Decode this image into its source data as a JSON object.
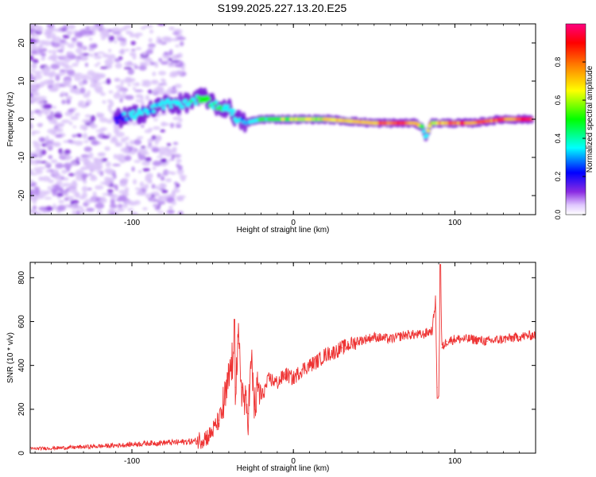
{
  "title": "S199.2025.227.13.20.E25",
  "chart_data": [
    {
      "type": "heatmap",
      "title": "S199.2025.227.13.20.E25",
      "xlabel": "Height of straight line (km)",
      "ylabel": "Frequency (Hz)",
      "xlim": [
        -163,
        150
      ],
      "ylim": [
        -25,
        25
      ],
      "xticks": [
        -100,
        0,
        100
      ],
      "xtick_labels": [
        "-100",
        "0",
        "100"
      ],
      "yticks": [
        -20,
        -10,
        0,
        10,
        20
      ],
      "ytick_labels": [
        "-20",
        "-10",
        "0",
        "10",
        "20"
      ],
      "colorbar": {
        "label": "Normalized spectral amplitude",
        "range": [
          0,
          1
        ],
        "ticks": [
          0.0,
          0.2,
          0.4,
          0.6,
          0.8
        ],
        "tick_labels": [
          "0.0",
          "0.2",
          "0.4",
          "0.6",
          "0.8"
        ],
        "colors": [
          "#ffffff",
          "#e0c8ff",
          "#8a2be2",
          "#0000ff",
          "#00ffff",
          "#00ff00",
          "#ffff00",
          "#ff8000",
          "#ff0000",
          "#ff0080"
        ]
      },
      "ridge": {
        "heights_km": [
          -110,
          -100,
          -90,
          -80,
          -70,
          -60,
          -55,
          -50,
          -45,
          -40,
          -35,
          -30,
          -20,
          0,
          20,
          50,
          75,
          80,
          82,
          85,
          95,
          110,
          130,
          148
        ],
        "frequency_hz": [
          0,
          1,
          2,
          4,
          4,
          5,
          6,
          4,
          3,
          3,
          0,
          -1,
          0,
          0,
          0,
          -1,
          -1,
          -2,
          -5,
          -1,
          -1,
          -1,
          0,
          0
        ],
        "amplitude": [
          0.2,
          0.25,
          0.25,
          0.3,
          0.3,
          0.35,
          0.45,
          0.4,
          0.35,
          0.35,
          0.3,
          0.25,
          0.4,
          0.55,
          0.6,
          0.75,
          0.8,
          0.5,
          0.4,
          0.6,
          0.7,
          0.8,
          0.85,
          0.9
        ]
      }
    },
    {
      "type": "line",
      "xlabel": "Height of straight line (km)",
      "ylabel": "SNR (10 * v/v)",
      "xlim": [
        -163,
        150
      ],
      "ylim": [
        0,
        870
      ],
      "xticks": [
        -100,
        0,
        100
      ],
      "xtick_labels": [
        "-100",
        "0",
        "100"
      ],
      "yticks": [
        0,
        200,
        400,
        600,
        800
      ],
      "ytick_labels": [
        "0",
        "200",
        "400",
        "600",
        "800"
      ],
      "color": "#ee3333",
      "series": [
        {
          "name": "SNR",
          "x": [
            -163,
            -140,
            -110,
            -90,
            -70,
            -60,
            -52,
            -46,
            -42,
            -38,
            -36,
            -34,
            -32,
            -30,
            -28,
            -26,
            -24,
            -22,
            -20,
            -15,
            -10,
            -5,
            0,
            5,
            10,
            15,
            20,
            25,
            30,
            40,
            50,
            60,
            70,
            80,
            86,
            88,
            89,
            90,
            91,
            92,
            95,
            100,
            110,
            120,
            130,
            140,
            150
          ],
          "y": [
            20,
            25,
            35,
            45,
            50,
            55,
            80,
            150,
            250,
            420,
            300,
            500,
            300,
            220,
            180,
            420,
            200,
            300,
            250,
            340,
            320,
            360,
            340,
            380,
            400,
            420,
            450,
            460,
            480,
            510,
            530,
            520,
            540,
            540,
            560,
            700,
            300,
            260,
            860,
            480,
            510,
            520,
            520,
            510,
            520,
            530,
            540
          ]
        }
      ]
    }
  ]
}
